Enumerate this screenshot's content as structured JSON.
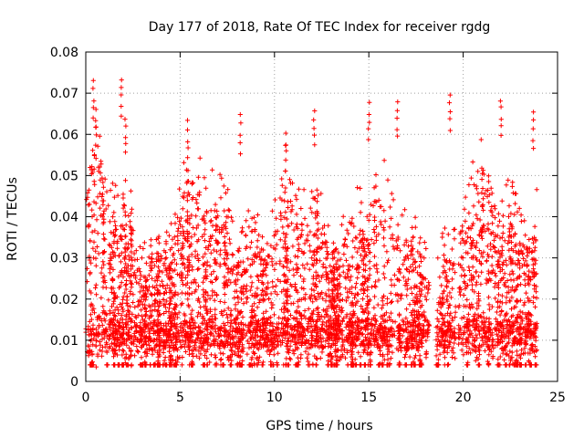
{
  "chart_data": {
    "type": "scatter",
    "title": "Day 177 of 2018, Rate Of TEC Index for receiver rgdg",
    "xlabel": "GPS time / hours",
    "ylabel": "ROTI / TECUs",
    "xlim": [
      0,
      25
    ],
    "ylim": [
      0,
      0.08
    ],
    "x_ticks": [
      0,
      5,
      10,
      15,
      20,
      25
    ],
    "x_tick_labels": [
      "0",
      "5",
      "10",
      "15",
      "20",
      "25"
    ],
    "y_ticks": [
      0,
      0.01,
      0.02,
      0.03,
      0.04,
      0.05,
      0.06,
      0.07,
      0.08
    ],
    "y_tick_labels": [
      "0",
      "0.01",
      "0.02",
      "0.03",
      "0.04",
      "0.05",
      "0.06",
      "0.07",
      "0.08"
    ],
    "grid": true,
    "marker": "+",
    "series": [
      {
        "name": "ROTI",
        "color": "#ff0000",
        "data_range_hours": [
          0,
          23.9
        ],
        "peaks": [
          {
            "x": 0.4,
            "y": 0.0735
          },
          {
            "x": 0.55,
            "y": 0.0665
          },
          {
            "x": 1.9,
            "y": 0.074
          },
          {
            "x": 2.1,
            "y": 0.0645
          },
          {
            "x": 5.4,
            "y": 0.0635
          },
          {
            "x": 8.2,
            "y": 0.065
          },
          {
            "x": 10.6,
            "y": 0.0605
          },
          {
            "x": 12.1,
            "y": 0.0665
          },
          {
            "x": 15.0,
            "y": 0.068
          },
          {
            "x": 16.5,
            "y": 0.0685
          },
          {
            "x": 19.3,
            "y": 0.0705
          },
          {
            "x": 22.0,
            "y": 0.069
          },
          {
            "x": 23.7,
            "y": 0.066
          }
        ],
        "gaps_hours": [
          [
            18.2,
            18.6
          ],
          [
            19.6,
            19.75
          ]
        ]
      }
    ]
  }
}
